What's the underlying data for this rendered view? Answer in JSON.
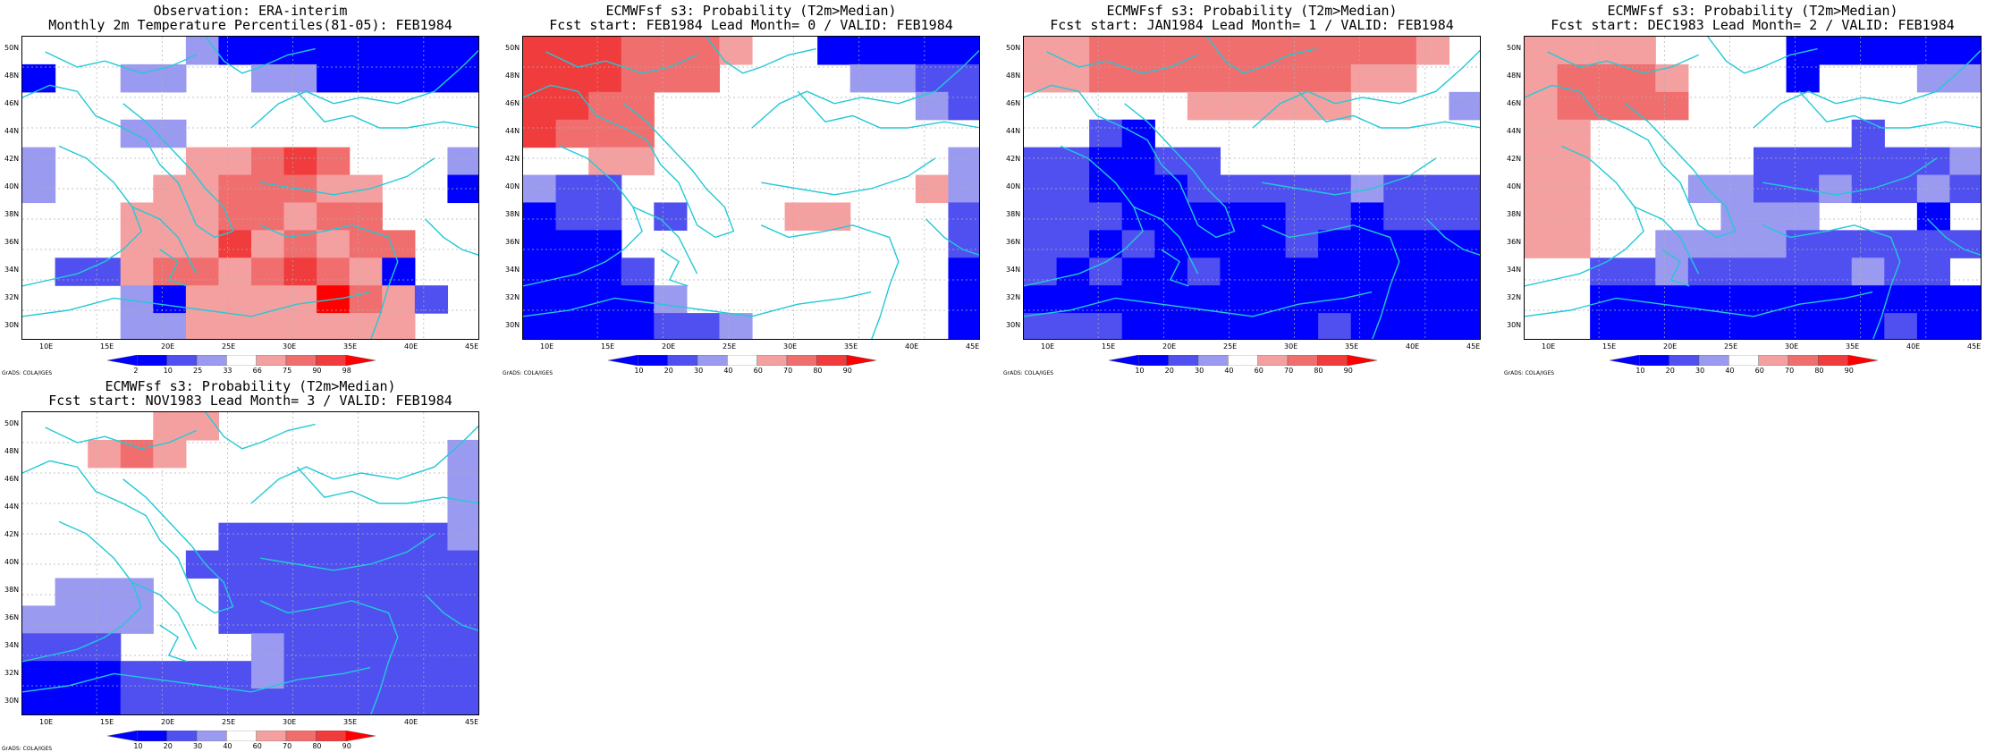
{
  "lat_labels": [
    "50N",
    "48N",
    "46N",
    "44N",
    "42N",
    "40N",
    "38N",
    "36N",
    "34N",
    "32N",
    "30N"
  ],
  "lon_labels": [
    "10E",
    "15E",
    "20E",
    "25E",
    "30E",
    "35E",
    "40E",
    "45E"
  ],
  "credit": "GrADS: COLA/IGES",
  "colors": {
    "blue3": "#0000ff",
    "blue2": "#5050f0",
    "blue1": "#9a9af0",
    "red1": "#f5a0a0",
    "red2": "#f06e6e",
    "red3": "#f03c3c",
    "red4": "#ff0000",
    "coast": "#22c9d6"
  },
  "panels": [
    {
      "title1": "Observation: ERA-interim",
      "title2": "Monthly 2m Temperature Percentiles(81-05): FEB1984",
      "colorbar": [
        "2",
        "10",
        "25",
        "33",
        "66",
        "75",
        "90",
        "98"
      ],
      "grid": [
        "00000133333333",
        "30011001133333",
        "00000000000000",
        "00011000000000",
        "10000556760001",
        "10045566655003",
        "00055566566000",
        "00055575656600",
        "02256656765300",
        "00013555586520",
        "00011555555500"
      ]
    },
    {
      "title1": "ECMWFsf s3: Probability (T2m>Median)",
      "title2": "Fcst start: FEB1984  Lead Month= 0 / VALID: FEB1984",
      "colorbar": [
        "10",
        "20",
        "30",
        "40",
        "60",
        "70",
        "80",
        "90"
      ],
      "grid": [
        "77766650033333",
        "77766600001122",
        "77660000000012",
        "76660000000000",
        "00550000000001",
        "12200000000051",
        "32202000550002",
        "33300000000002",
        "33320000000003",
        "33331000000003",
        "33332210000003"
      ]
    },
    {
      "title1": "ECMWFsf s3: Probability (T2m>Median)",
      "title2": "Fcst start: JAN1984  Lead Month= 1 / VALID: FEB1984",
      "colorbar": [
        "10",
        "20",
        "30",
        "40",
        "60",
        "70",
        "80",
        "90"
      ],
      "grid": [
        "55666666666650",
        "55666666665500",
        "00000555550001",
        "00230000000000",
        "22332200000000",
        "22333222221222",
        "22233333223222",
        "22323333233333",
        "23233233333333",
        "33333333333333",
        "22233333323333"
      ]
    },
    {
      "title1": "ECMWFsf s3: Probability (T2m>Median)",
      "title2": "Fcst start: DEC1983  Lead Month= 2 / VALID: FEB1984",
      "colorbar": [
        "10",
        "20",
        "30",
        "40",
        "60",
        "70",
        "80",
        "90"
      ],
      "grid": [
        "55550000333333",
        "56665000300011",
        "56666000000000",
        "55000000002000",
        "55000002222221",
        "55000112212212",
        "55000011100030",
        "55001111222222",
        "00221222221220",
        "00333333333333",
        "00333333333233"
      ]
    },
    {
      "title1": "ECMWFsf s3: Probability (T2m>Median)",
      "title2": "Fcst start: NOV1983  Lead Month= 3 / VALID: FEB1984",
      "colorbar": [
        "10",
        "20",
        "30",
        "40",
        "60",
        "70",
        "80",
        "90"
      ],
      "grid": [
        "00005500000000",
        "00565000000001",
        "00000000000001",
        "00000000000001",
        "00000022222221",
        "00000222222222",
        "01110022222222",
        "11110022222222",
        "22200001222222",
        "33322221222222",
        "33322222222222"
      ]
    }
  ]
}
